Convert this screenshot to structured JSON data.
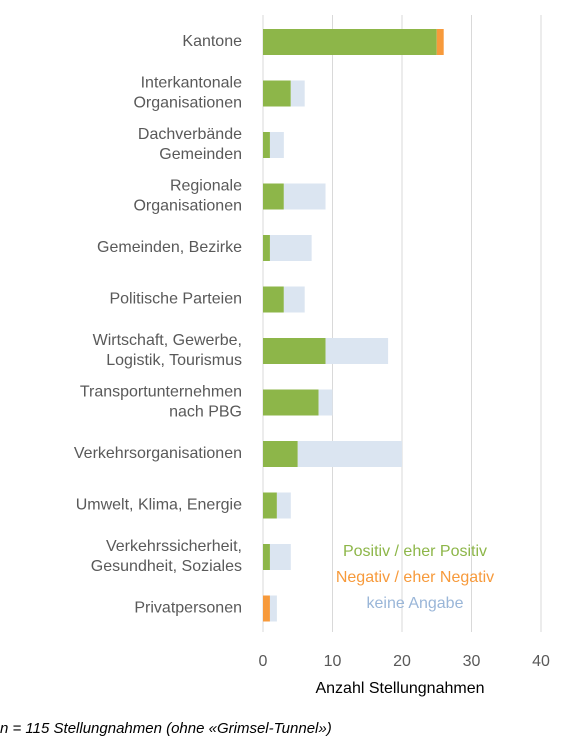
{
  "chart_data": {
    "type": "stacked_barh",
    "categories": [
      "Kantone",
      "Interkantonale\nOrganisationen",
      "Dachverbände\nGemeinden",
      "Regionale\nOrganisationen",
      "Gemeinden, Bezirke",
      "Politische Parteien",
      "Wirtschaft, Gewerbe,\nLogistik, Tourismus",
      "Transportunternehmen\nnach PBG",
      "Verkehrsorganisationen",
      "Umwelt, Klima, Energie",
      "Verkehrssicherheit,\nGesundheit, Soziales",
      "Privatpersonen"
    ],
    "series": [
      {
        "name": "Positiv / eher Positiv",
        "color": "#8db649",
        "values": [
          25,
          4,
          1,
          3,
          1,
          3,
          9,
          8,
          5,
          2,
          1,
          0
        ]
      },
      {
        "name": "Negativ / eher Negativ",
        "color": "#f79a3b",
        "values": [
          1,
          0,
          0,
          0,
          0,
          0,
          0,
          0,
          0,
          0,
          0,
          1
        ]
      },
      {
        "name": "keine Angabe",
        "color": "#dbe5f1",
        "values": [
          0,
          2,
          2,
          6,
          6,
          3,
          9,
          2,
          15,
          2,
          3,
          1
        ]
      }
    ],
    "xlabel": "Anzahl Stellungnahmen",
    "xlim": [
      0,
      40
    ],
    "xticks": [
      0,
      10,
      20,
      30,
      40
    ],
    "grid": true,
    "note": "n = 115 Stellungnahmen (ohne «Grimsel-Tunnel»)"
  }
}
